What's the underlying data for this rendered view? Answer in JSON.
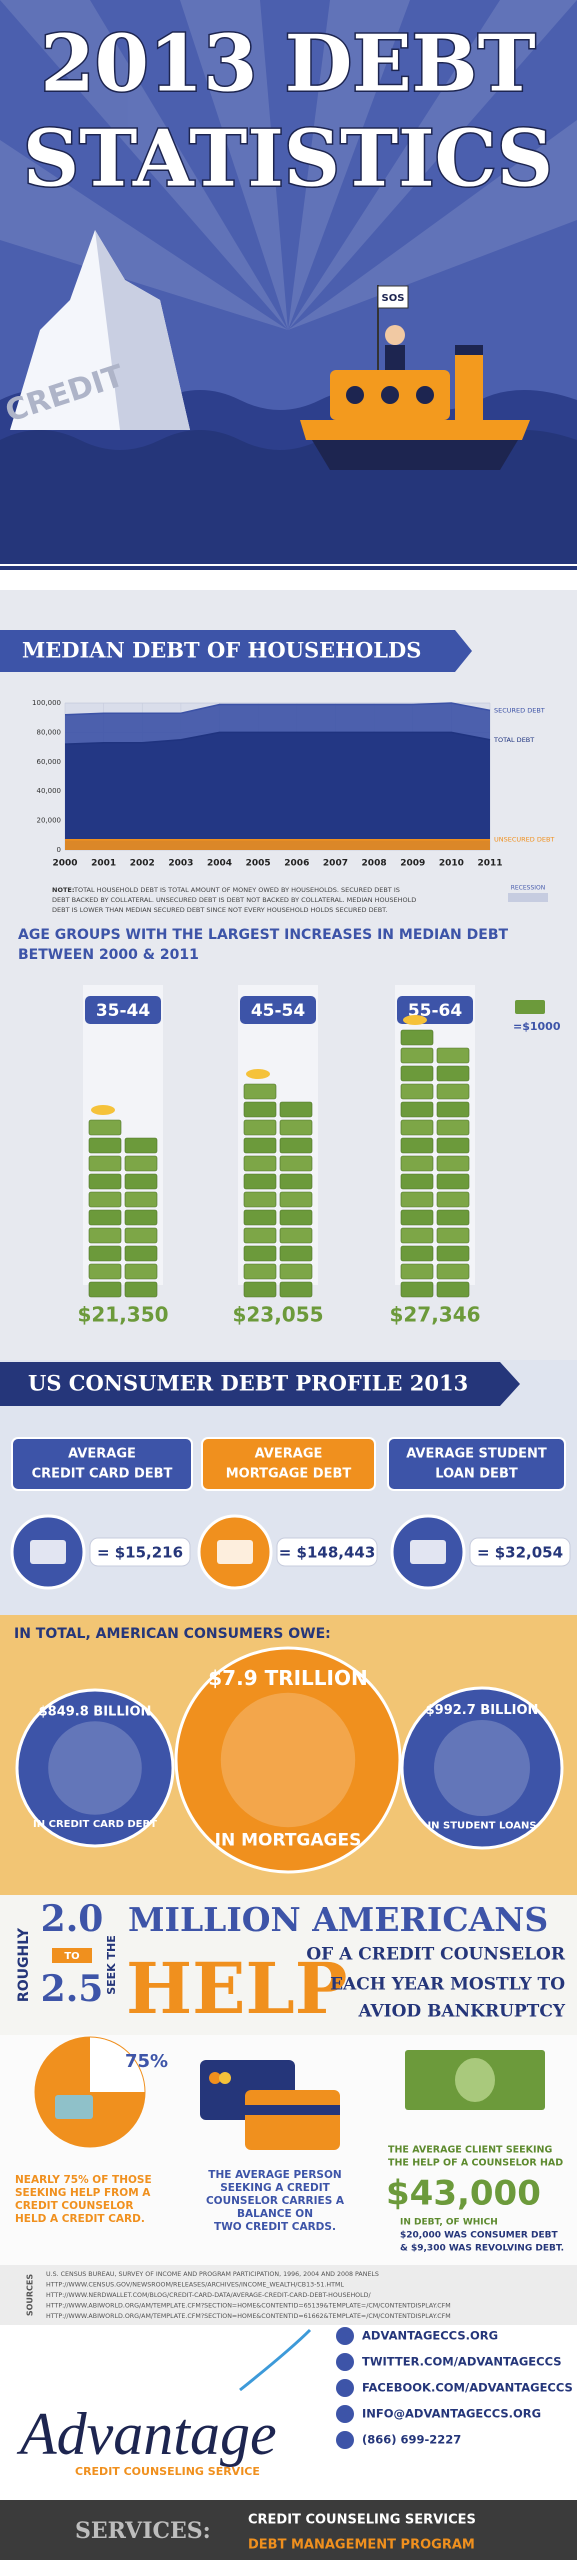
{
  "header": {
    "title_lines": [
      "2013 DEBT",
      "STATISTICS"
    ],
    "iceberg_label": "CREDIT",
    "flag_label": "SOS"
  },
  "chart_data": {
    "type": "area",
    "title": "MEDIAN DEBT OF HOUSEHOLDS",
    "x": [
      2000,
      2001,
      2002,
      2003,
      2004,
      2005,
      2006,
      2007,
      2008,
      2009,
      2010,
      2011
    ],
    "xlim": [
      2000,
      2011
    ],
    "ylim": [
      0,
      100000
    ],
    "yticks": [
      0,
      {
        "value": 20000,
        "label": "20,000"
      },
      {
        "value": 40000,
        "label": "40,000"
      },
      {
        "value": 60000,
        "label": "60,000"
      },
      {
        "value": 80000,
        "label": "80,000"
      },
      {
        "value": 100000,
        "label": "100,000"
      }
    ],
    "grid": true,
    "series": [
      {
        "name": "SECURED DEBT",
        "color": "#3c52a6",
        "values": [
          92000,
          93000,
          93000,
          93000,
          99000,
          99000,
          99000,
          99000,
          99000,
          99000,
          100000,
          95000
        ]
      },
      {
        "name": "TOTAL DEBT",
        "color": "#1f337f",
        "values": [
          72000,
          73000,
          73000,
          75000,
          80000,
          80000,
          80000,
          80000,
          80000,
          80000,
          80000,
          75000
        ]
      },
      {
        "name": "UNSECURED DEBT",
        "color": "#f0901e",
        "values": [
          7000,
          7000,
          7000,
          7000,
          7000,
          7000,
          7000,
          7000,
          7000,
          7000,
          7000,
          7000
        ]
      }
    ],
    "recession_label": "RECESSION",
    "note_label": "NOTE:",
    "note_lines": [
      "TOTAL HOUSEHOLD DEBT IS TOTAL AMOUNT OF MONEY OWED BY HOUSEHOLDS. SECURED DEBT IS",
      "DEBT BACKED BY COLLATERAL. UNSECURED DEBT IS DEBT NOT BACKED BY COLLATERAL. MEDIAN HOUSEHOLD",
      "DEBT IS LOWER THAN MEDIAN SECURED DEBT SINCE NOT EVERY HOUSEHOLD HOLDS SECURED DEBT."
    ]
  },
  "age_groups": {
    "title_lines": [
      "AGE GROUPS WITH THE LARGEST INCREASES IN MEDIAN DEBT",
      "BETWEEN 2000 & 2011"
    ],
    "groups": [
      {
        "label": "35-44",
        "amount": "$21,350"
      },
      {
        "label": "45-54",
        "amount": "$23,055"
      },
      {
        "label": "55-64",
        "amount": "$27,346"
      }
    ],
    "legend": "=$1000"
  },
  "consumer_profile": {
    "title": "US CONSUMER DEBT PROFILE 2013",
    "items": [
      {
        "label_lines": [
          "AVERAGE",
          "CREDIT CARD DEBT"
        ],
        "amount": "= $15,216"
      },
      {
        "label_lines": [
          "AVERAGE",
          "MORTGAGE DEBT"
        ],
        "amount": "= $148,443"
      },
      {
        "label_lines": [
          "AVERAGE STUDENT",
          "LOAN DEBT"
        ],
        "amount": "= $32,054"
      }
    ]
  },
  "totals": {
    "title": "IN TOTAL, AMERICAN CONSUMERS OWE:",
    "items": [
      {
        "amount": "$849.8 BILLION",
        "desc": "IN CREDIT CARD DEBT"
      },
      {
        "amount": "$7.9 TRILLION",
        "desc": "IN MORTGAGES"
      },
      {
        "amount": "$992.7 BILLION",
        "desc": "IN STUDENT LOANS"
      }
    ]
  },
  "help": {
    "roughly": "ROUGHLY",
    "low": "2.0",
    "to": "TO",
    "high": "2.5",
    "seek": "SEEK THE",
    "line1": "MILLION AMERICANS",
    "help": "HELP",
    "line2": "OF A CREDIT COUNSELOR",
    "line3": "EACH YEAR MOSTLY TO",
    "line4": "AVIOD BANKRUPTCY"
  },
  "stats": {
    "pie": {
      "value": 75,
      "label": "75%"
    },
    "card_holders": [
      "NEARLY 75% OF THOSE",
      "SEEKING HELP FROM A",
      "CREDIT COUNSELOR",
      "HELD A CREDIT CARD."
    ],
    "two_cards": [
      "THE AVERAGE PERSON",
      "SEEKING A CREDIT",
      "COUNSELOR CARRIES A",
      "BALANCE ON",
      "TWO CREDIT CARDS."
    ],
    "client_intro": [
      "THE AVERAGE CLIENT SEEKING",
      "THE HELP OF A COUNSELOR HAD"
    ],
    "client_amount": "$43,000",
    "client_detail": [
      "IN DEBT, OF WHICH",
      "$20,000 WAS CONSUMER DEBT",
      "& $9,300 WAS REVOLVING DEBT."
    ]
  },
  "sources": {
    "label": "SOURCES",
    "lines": [
      "U.S. CENSUS BUREAU, SURVEY OF INCOME AND PROGRAM PARTICIPATION, 1996, 2004 AND 2008 PANELS",
      "HTTP://WWW.CENSUS.GOV/NEWSROOM/RELEASES/ARCHIVES/INCOME_WEALTH/CB13-51.HTML",
      "HTTP://WWW.NERDWALLET.COM/BLOG/CREDIT-CARD-DATA/AVERAGE-CREDIT-CARD-DEBT-HOUSEHOLD/",
      "HTTP://WWW.ABIWORLD.ORG/AM/TEMPLATE.CFM?SECTION=HOME&CONTENTID=65139&TEMPLATE=/CM/CONTENTDISPLAY.CFM",
      "HTTP://WWW.ABIWORLD.ORG/AM/TEMPLATE.CFM?SECTION=HOME&CONTENTID=61662&TEMPLATE=/CM/CONTENTDISPLAY.CFM"
    ]
  },
  "footer": {
    "logo": "Advantage",
    "tagline": "CREDIT COUNSELING SERVICE",
    "contacts": [
      "ADVANTAGECCS.ORG",
      "TWITTER.COM/ADVANTAGECCS",
      "FACEBOOK.COM/ADVANTAGECCS",
      "INFO@ADVANTAGECCS.ORG",
      "(866) 699-2227"
    ],
    "services_label": "SERVICES:",
    "services": [
      "CREDIT COUNSELING SERVICES",
      "DEBT MANAGEMENT PROGRAM"
    ]
  }
}
